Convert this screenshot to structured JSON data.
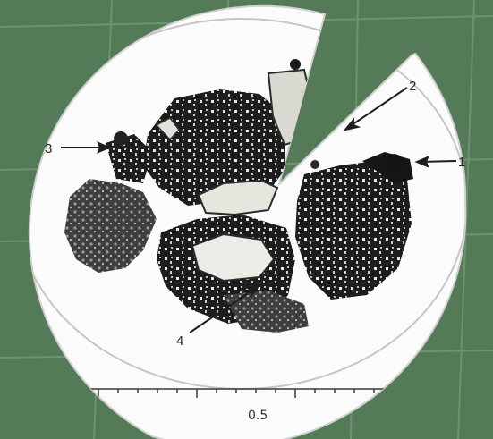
{
  "colors": {
    "background": "#557a57",
    "grid_line": "#86a887",
    "disc": "#fbfbfb",
    "disc_rim": "#c8c8c8",
    "particle_dark": "#1d1d1d",
    "particle_mid": "#4a4a4a",
    "grain_light": "#d9d9d2"
  },
  "labels": {
    "label_1": "1",
    "label_2": "2",
    "label_3": "3",
    "label_4": "4"
  },
  "scale_bar": {
    "value": "0.5"
  }
}
